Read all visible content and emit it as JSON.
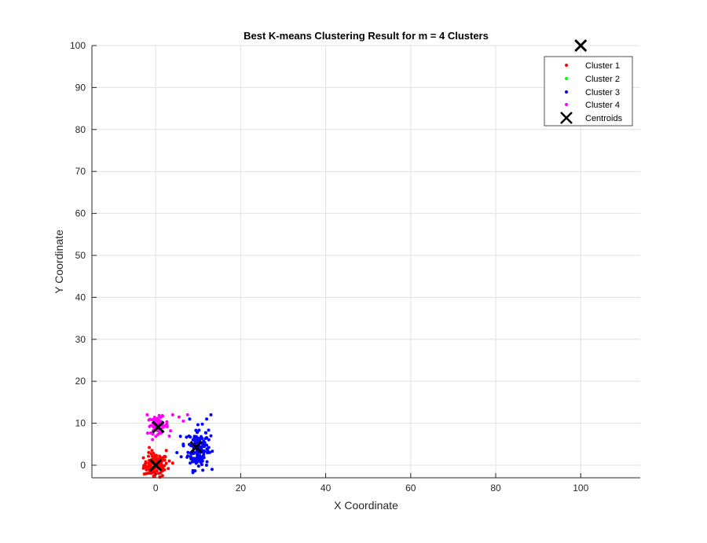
{
  "chart_data": {
    "type": "scatter",
    "title": "Best K-means Clustering Result for m = 4 Clusters",
    "xlabel": "X Coordinate",
    "ylabel": "Y Coordinate",
    "xlim": [
      -15,
      114
    ],
    "ylim": [
      -3,
      100
    ],
    "xticks": [
      0,
      20,
      40,
      60,
      80,
      100
    ],
    "yticks": [
      0,
      10,
      20,
      30,
      40,
      50,
      60,
      70,
      80,
      90,
      100
    ],
    "grid": true,
    "legend_position": "top-right",
    "series": [
      {
        "name": "Cluster 1",
        "color": "#ff0000",
        "center": [
          0,
          0
        ],
        "spread": [
          1.4,
          1.4
        ],
        "count": 110,
        "extra_points": [
          [
            -1.5,
            4.2
          ],
          [
            2.5,
            3.5
          ],
          [
            3.2,
            1.0
          ],
          [
            -2.2,
            -2.0
          ],
          [
            4.0,
            0.5
          ],
          [
            1.0,
            -2.8
          ]
        ]
      },
      {
        "name": "Cluster 2",
        "color": "#00ff00",
        "center": [
          100,
          100
        ],
        "spread": [
          0,
          0
        ],
        "count": 0,
        "extra_points": []
      },
      {
        "name": "Cluster 3",
        "color": "#0000ff",
        "center": [
          10,
          4
        ],
        "spread": [
          1.2,
          2.5
        ],
        "count": 150,
        "extra_points": [
          [
            13,
            12
          ],
          [
            12.5,
            4.2
          ],
          [
            12,
            11
          ],
          [
            6,
            2
          ],
          [
            6.5,
            5
          ],
          [
            8,
            11
          ],
          [
            13,
            7
          ],
          [
            5,
            3
          ]
        ]
      },
      {
        "name": "Cluster 4",
        "color": "#ff00ff",
        "center": [
          0.5,
          9.5
        ],
        "spread": [
          1.2,
          1.0
        ],
        "count": 70,
        "extra_points": [
          [
            5.5,
            11.5
          ],
          [
            7.5,
            12
          ],
          [
            6.5,
            10.5
          ],
          [
            -2,
            12
          ],
          [
            3.5,
            8.2
          ],
          [
            4,
            12
          ]
        ]
      }
    ],
    "centroids": {
      "name": "Centroids",
      "color": "#000000",
      "points": [
        [
          0,
          0
        ],
        [
          100,
          100
        ],
        [
          9.5,
          4.3
        ],
        [
          0.6,
          9.1
        ]
      ]
    }
  }
}
